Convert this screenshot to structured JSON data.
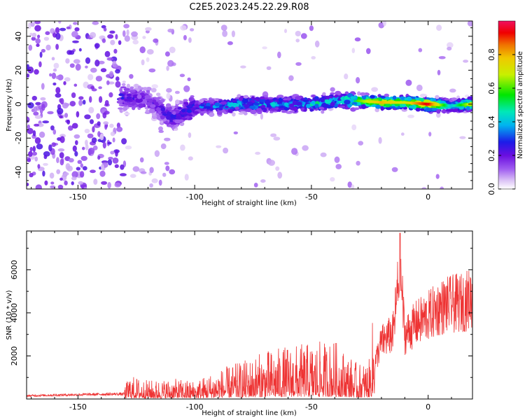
{
  "title": "C2E5.2023.245.22.29.R08",
  "chart_data": [
    {
      "type": "heatmap",
      "xlabel": "Height of straight line (km)",
      "ylabel": "Frequency (Hz)",
      "xlim": [
        -172,
        19
      ],
      "ylim": [
        -50,
        49
      ],
      "xticks": [
        -150,
        -100,
        -50,
        0
      ],
      "yticks": [
        40,
        20,
        0,
        -20,
        -40
      ],
      "colorbar": {
        "label": "Normalized spectral amplitude",
        "range": [
          0.0,
          1.0
        ],
        "ticks": [
          0.0,
          0.2,
          0.4,
          0.6,
          0.8
        ],
        "tick_labels": [
          "0.0",
          "0.2",
          "0.4",
          "0.6",
          "0.8"
        ],
        "colors": [
          "#ffffff",
          "#dcc4f6",
          "#9f5cf0",
          "#6a0ee0",
          "#1c1ce8",
          "#00b4f0",
          "#00e8b8",
          "#00e600",
          "#c8f000",
          "#f0c800",
          "#f07000",
          "#f00000",
          "#f01060"
        ]
      },
      "grid": false,
      "ridge": [
        {
          "x": -130,
          "freq": 4,
          "value": 0.25
        },
        {
          "x": -120,
          "freq": 2,
          "value": 0.2
        },
        {
          "x": -110,
          "freq": -8,
          "value": 0.25
        },
        {
          "x": -100,
          "freq": -2,
          "value": 0.3
        },
        {
          "x": -90,
          "freq": -1,
          "value": 0.35
        },
        {
          "x": -80,
          "freq": 0,
          "value": 0.4
        },
        {
          "x": -70,
          "freq": 0,
          "value": 0.4
        },
        {
          "x": -60,
          "freq": 0,
          "value": 0.4
        },
        {
          "x": -50,
          "freq": 0,
          "value": 0.45
        },
        {
          "x": -40,
          "freq": 2,
          "value": 0.45
        },
        {
          "x": -30,
          "freq": 2,
          "value": 0.6
        },
        {
          "x": -20,
          "freq": 1,
          "value": 0.8
        },
        {
          "x": -10,
          "freq": 1,
          "value": 0.7
        },
        {
          "x": 0,
          "freq": 0,
          "value": 0.95
        },
        {
          "x": 10,
          "freq": -1,
          "value": 0.4
        },
        {
          "x": 18,
          "freq": 0,
          "value": 0.7
        }
      ]
    },
    {
      "type": "line",
      "xlabel": "Height of straight line (km)",
      "ylabel": "SNR (10 * v/v)",
      "xlim": [
        -172,
        19
      ],
      "ylim": [
        0,
        7800
      ],
      "xticks": [
        -150,
        -100,
        -50,
        0
      ],
      "yticks": [
        2000,
        4000,
        6000
      ],
      "color": "#ee3333",
      "grid": false,
      "series": [
        {
          "x": [
            -172,
            -160,
            -150,
            -140,
            -130,
            -128,
            -120,
            -110,
            -100,
            -90,
            -80,
            -70,
            -60,
            -50,
            -40,
            -30,
            -25,
            -23,
            -20,
            -15,
            -12,
            -10,
            -5,
            0,
            5,
            10,
            15,
            19
          ],
          "values": [
            150,
            180,
            200,
            220,
            230,
            450,
            350,
            380,
            350,
            550,
            700,
            900,
            1000,
            1050,
            1100,
            650,
            750,
            2000,
            3300,
            3800,
            7700,
            3700,
            4400,
            4800,
            5300,
            5500,
            5600,
            5900
          ]
        }
      ]
    }
  ]
}
